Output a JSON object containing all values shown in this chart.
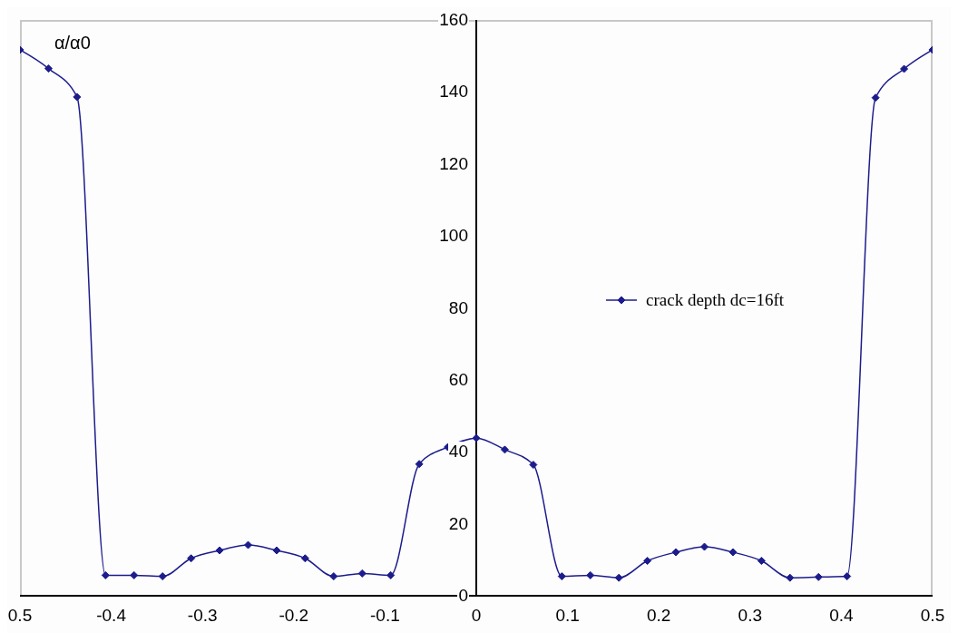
{
  "chart_data": {
    "type": "line",
    "ylabel": "α/α0",
    "x": [
      -0.5,
      -0.46875,
      -0.4375,
      -0.40625,
      -0.375,
      -0.34375,
      -0.3125,
      -0.28125,
      -0.25,
      -0.21875,
      -0.1875,
      -0.15625,
      -0.125,
      -0.09375,
      -0.0625,
      -0.03125,
      0,
      0.03125,
      0.0625,
      0.09375,
      0.125,
      0.15625,
      0.1875,
      0.21875,
      0.25,
      0.28125,
      0.3125,
      0.34375,
      0.375,
      0.40625,
      0.4375,
      0.46875,
      0.5
    ],
    "series": [
      {
        "name": "crack depth dc=16ft",
        "color": "#1c1c8c",
        "values": [
          151.7,
          146.5,
          138.6,
          5.7,
          5.7,
          5.4,
          10.4,
          12.6,
          14.1,
          12.6,
          10.4,
          5.4,
          6.2,
          5.7,
          36.6,
          41.3,
          43.8,
          40.6,
          36.4,
          5.4,
          5.7,
          5.0,
          9.7,
          12.1,
          13.6,
          12.1,
          9.7,
          5.0,
          5.2,
          5.4,
          138.4,
          146.4,
          151.7
        ]
      }
    ],
    "xlim": [
      -0.5,
      0.5
    ],
    "xticks": [
      {
        "value": -0.5,
        "label": "0.5"
      },
      -0.4,
      -0.3,
      -0.2,
      -0.1,
      0,
      0.1,
      0.2,
      0.3,
      0.4,
      0.5
    ],
    "ylim": [
      0,
      160
    ],
    "yticks": [
      0,
      20,
      40,
      60,
      80,
      100,
      120,
      140,
      160
    ],
    "legend": "right",
    "marker": "diamond",
    "line_style": "solid"
  }
}
